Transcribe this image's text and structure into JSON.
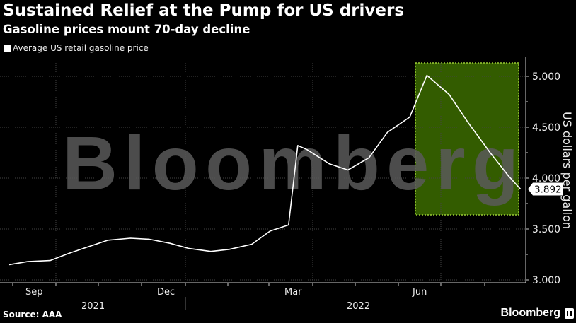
{
  "header": {
    "title": "Sustained Relief at the Pump for US drivers",
    "subtitle": "Gasoline prices mount 70-day decline"
  },
  "legend": {
    "label": "Average US retail gasoline price",
    "color": "#ffffff"
  },
  "footer": {
    "source": "Source: AAA",
    "brand": "Bloomberg"
  },
  "watermark": "Bloomberg",
  "colors": {
    "background": "#000000",
    "line": "#ffffff",
    "highlight_fill": "#335c00",
    "highlight_border": "#9acd32",
    "watermark": "#5a5a5a"
  },
  "chart_data": {
    "type": "line",
    "title": "Sustained Relief at the Pump for US drivers",
    "subtitle": "Gasoline prices mount 70-day decline",
    "xlabel": "",
    "ylabel": "US dollars per gallon",
    "ylim": [
      3.0,
      5.0
    ],
    "yticks": [
      "3.000",
      "3.500",
      "4.000",
      "4.500",
      "5.000"
    ],
    "xticks": [
      "Sep",
      "Dec",
      "Mar",
      "Jun"
    ],
    "year_labels": [
      "2021",
      "2022"
    ],
    "grid": true,
    "legend_position": "top-left",
    "last_value_label": "3.892",
    "highlight_region": {
      "start": "mid-Jun 2022",
      "end": "late Aug 2022",
      "note": "70-day decline"
    },
    "series": [
      {
        "name": "Average US retail gasoline price",
        "x": [
          "2021-08-01",
          "2021-08-15",
          "2021-09-01",
          "2021-09-15",
          "2021-10-01",
          "2021-10-15",
          "2021-11-01",
          "2021-11-15",
          "2021-12-01",
          "2021-12-15",
          "2022-01-01",
          "2022-01-15",
          "2022-02-01",
          "2022-02-15",
          "2022-03-01",
          "2022-03-08",
          "2022-03-15",
          "2022-04-01",
          "2022-04-15",
          "2022-05-01",
          "2022-05-15",
          "2022-06-01",
          "2022-06-14",
          "2022-07-01",
          "2022-07-15",
          "2022-08-01",
          "2022-08-15",
          "2022-08-24"
        ],
        "values": [
          3.15,
          3.18,
          3.19,
          3.26,
          3.33,
          3.39,
          3.41,
          3.4,
          3.36,
          3.31,
          3.28,
          3.3,
          3.35,
          3.48,
          3.54,
          4.32,
          4.28,
          4.14,
          4.08,
          4.2,
          4.45,
          4.6,
          5.01,
          4.82,
          4.55,
          4.25,
          4.02,
          3.892
        ]
      }
    ]
  }
}
